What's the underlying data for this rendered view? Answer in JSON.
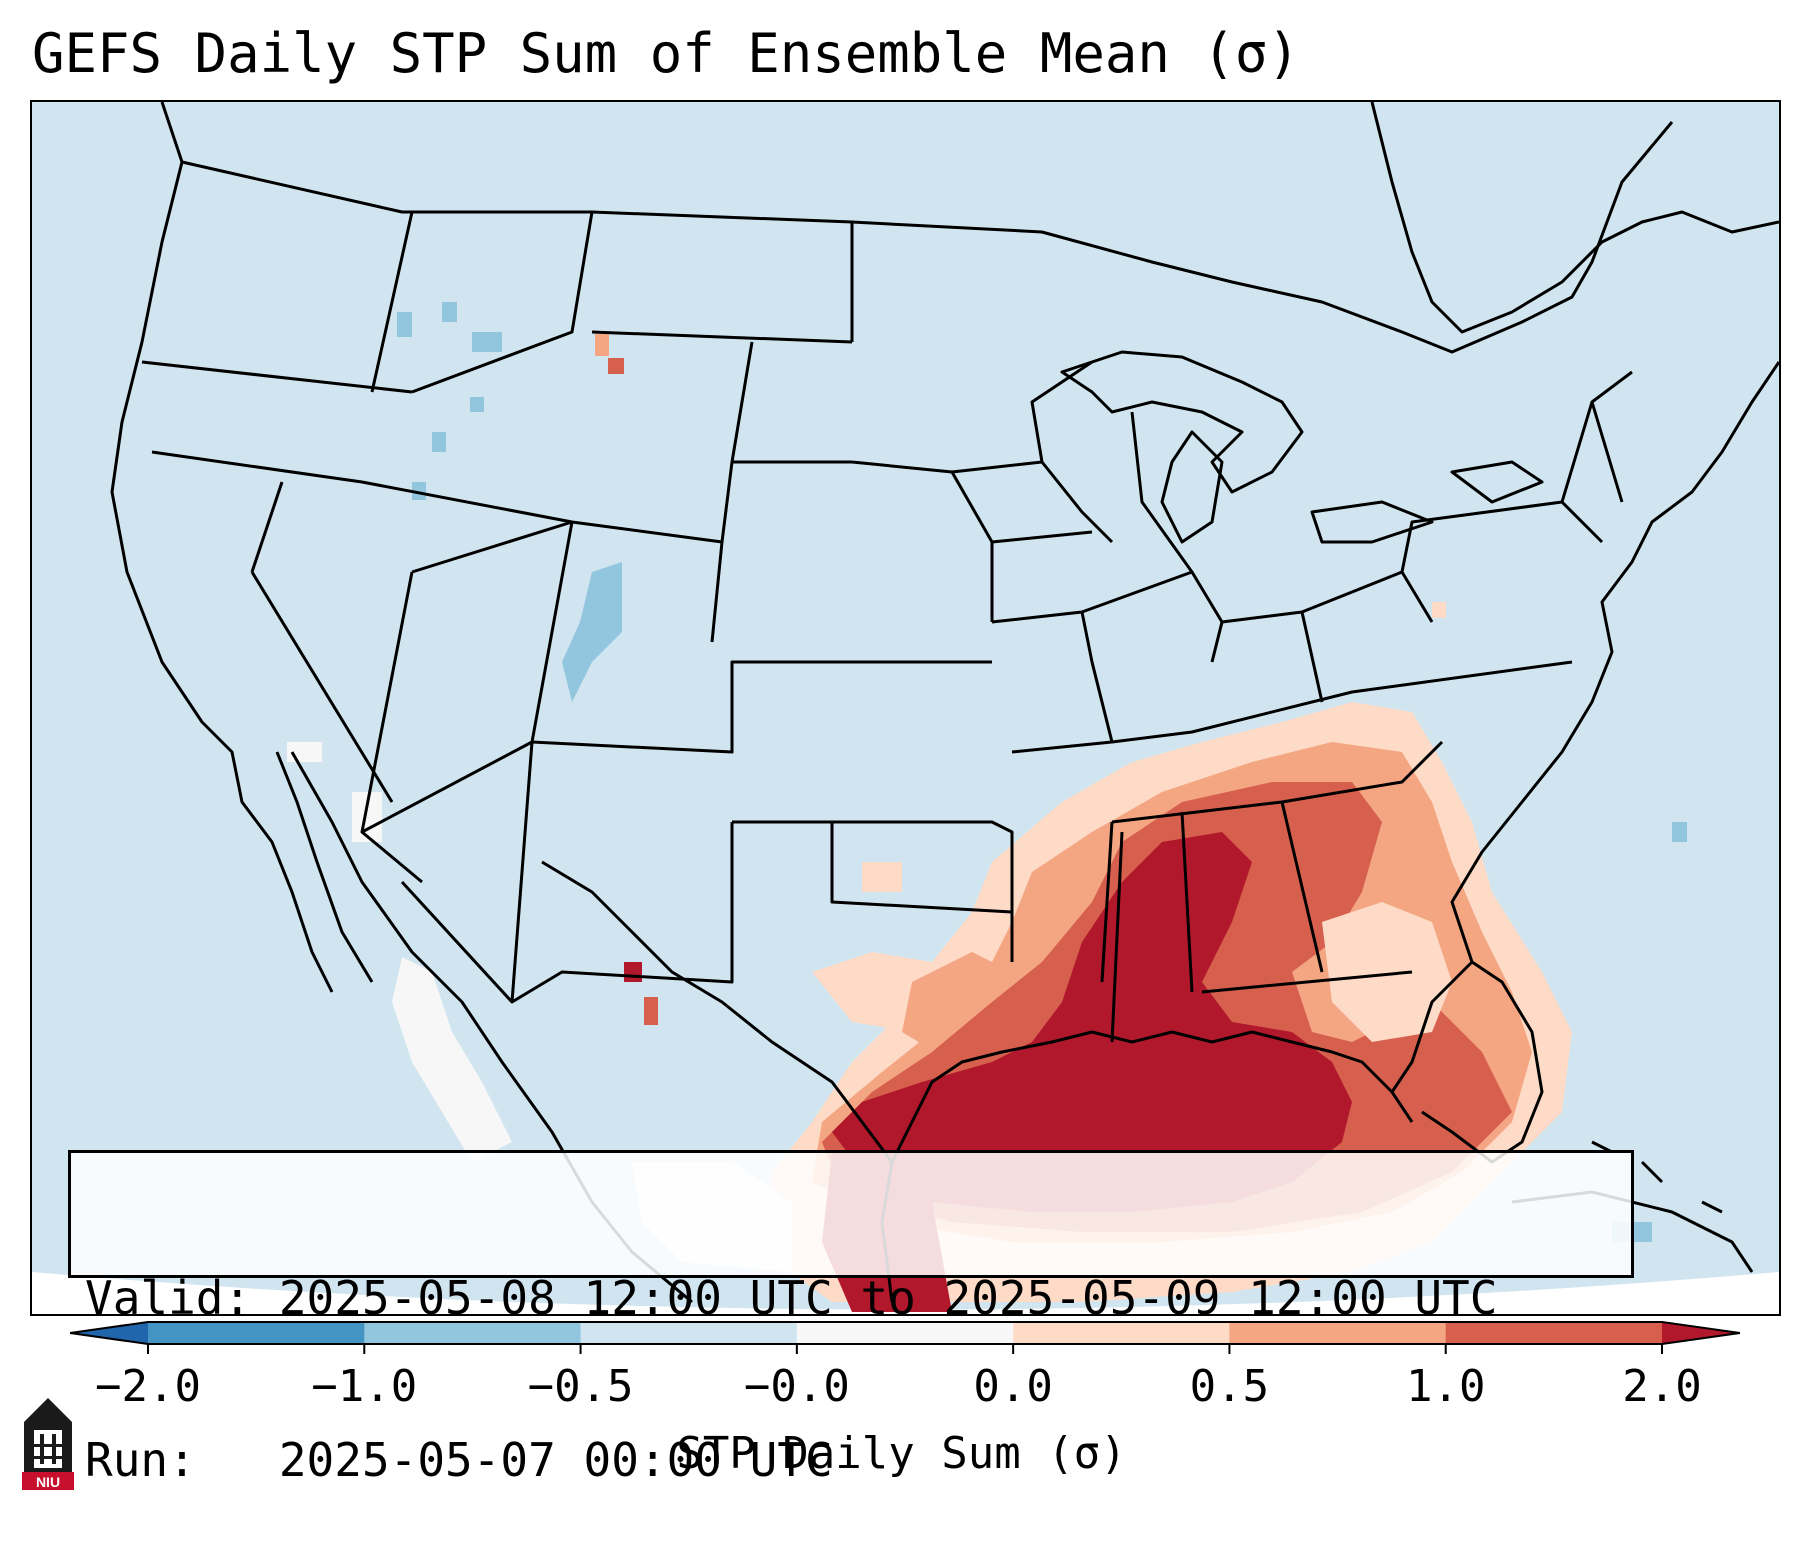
{
  "title": "GEFS Daily STP Sum of Ensemble Mean (σ)",
  "info": {
    "valid_line": "Valid: 2025-05-08 12:00 UTC to 2025-05-09 12:00 UTC",
    "run_line": "Run:   2025-05-07 00:00 UTC"
  },
  "colorbar": {
    "label": "STP Daily Sum (σ)",
    "ticks": [
      "−2.0",
      "−1.0",
      "−0.5",
      "−0.0",
      "0.0",
      "0.5",
      "1.0",
      "2.0"
    ],
    "bins": [
      {
        "color": "#2166ac"
      },
      {
        "color": "#4393c3"
      },
      {
        "color": "#92c5de"
      },
      {
        "color": "#d1e5f0"
      },
      {
        "color": "#f7f7f7"
      },
      {
        "color": "#fddbc7"
      },
      {
        "color": "#f4a582"
      },
      {
        "color": "#d6604d"
      },
      {
        "color": "#b2182b"
      }
    ],
    "extend": "both"
  },
  "colors": {
    "ocean": "#d1e5f0",
    "strong_positive": "#b2182b",
    "positive": "#d6604d",
    "weak_positive": "#f4a582",
    "slight_positive": "#fddbc7",
    "near_zero": "#f7f7f7",
    "slight_negative": "#92c5de"
  },
  "logo": {
    "text": "NIU",
    "icon": "university-tower-icon"
  }
}
